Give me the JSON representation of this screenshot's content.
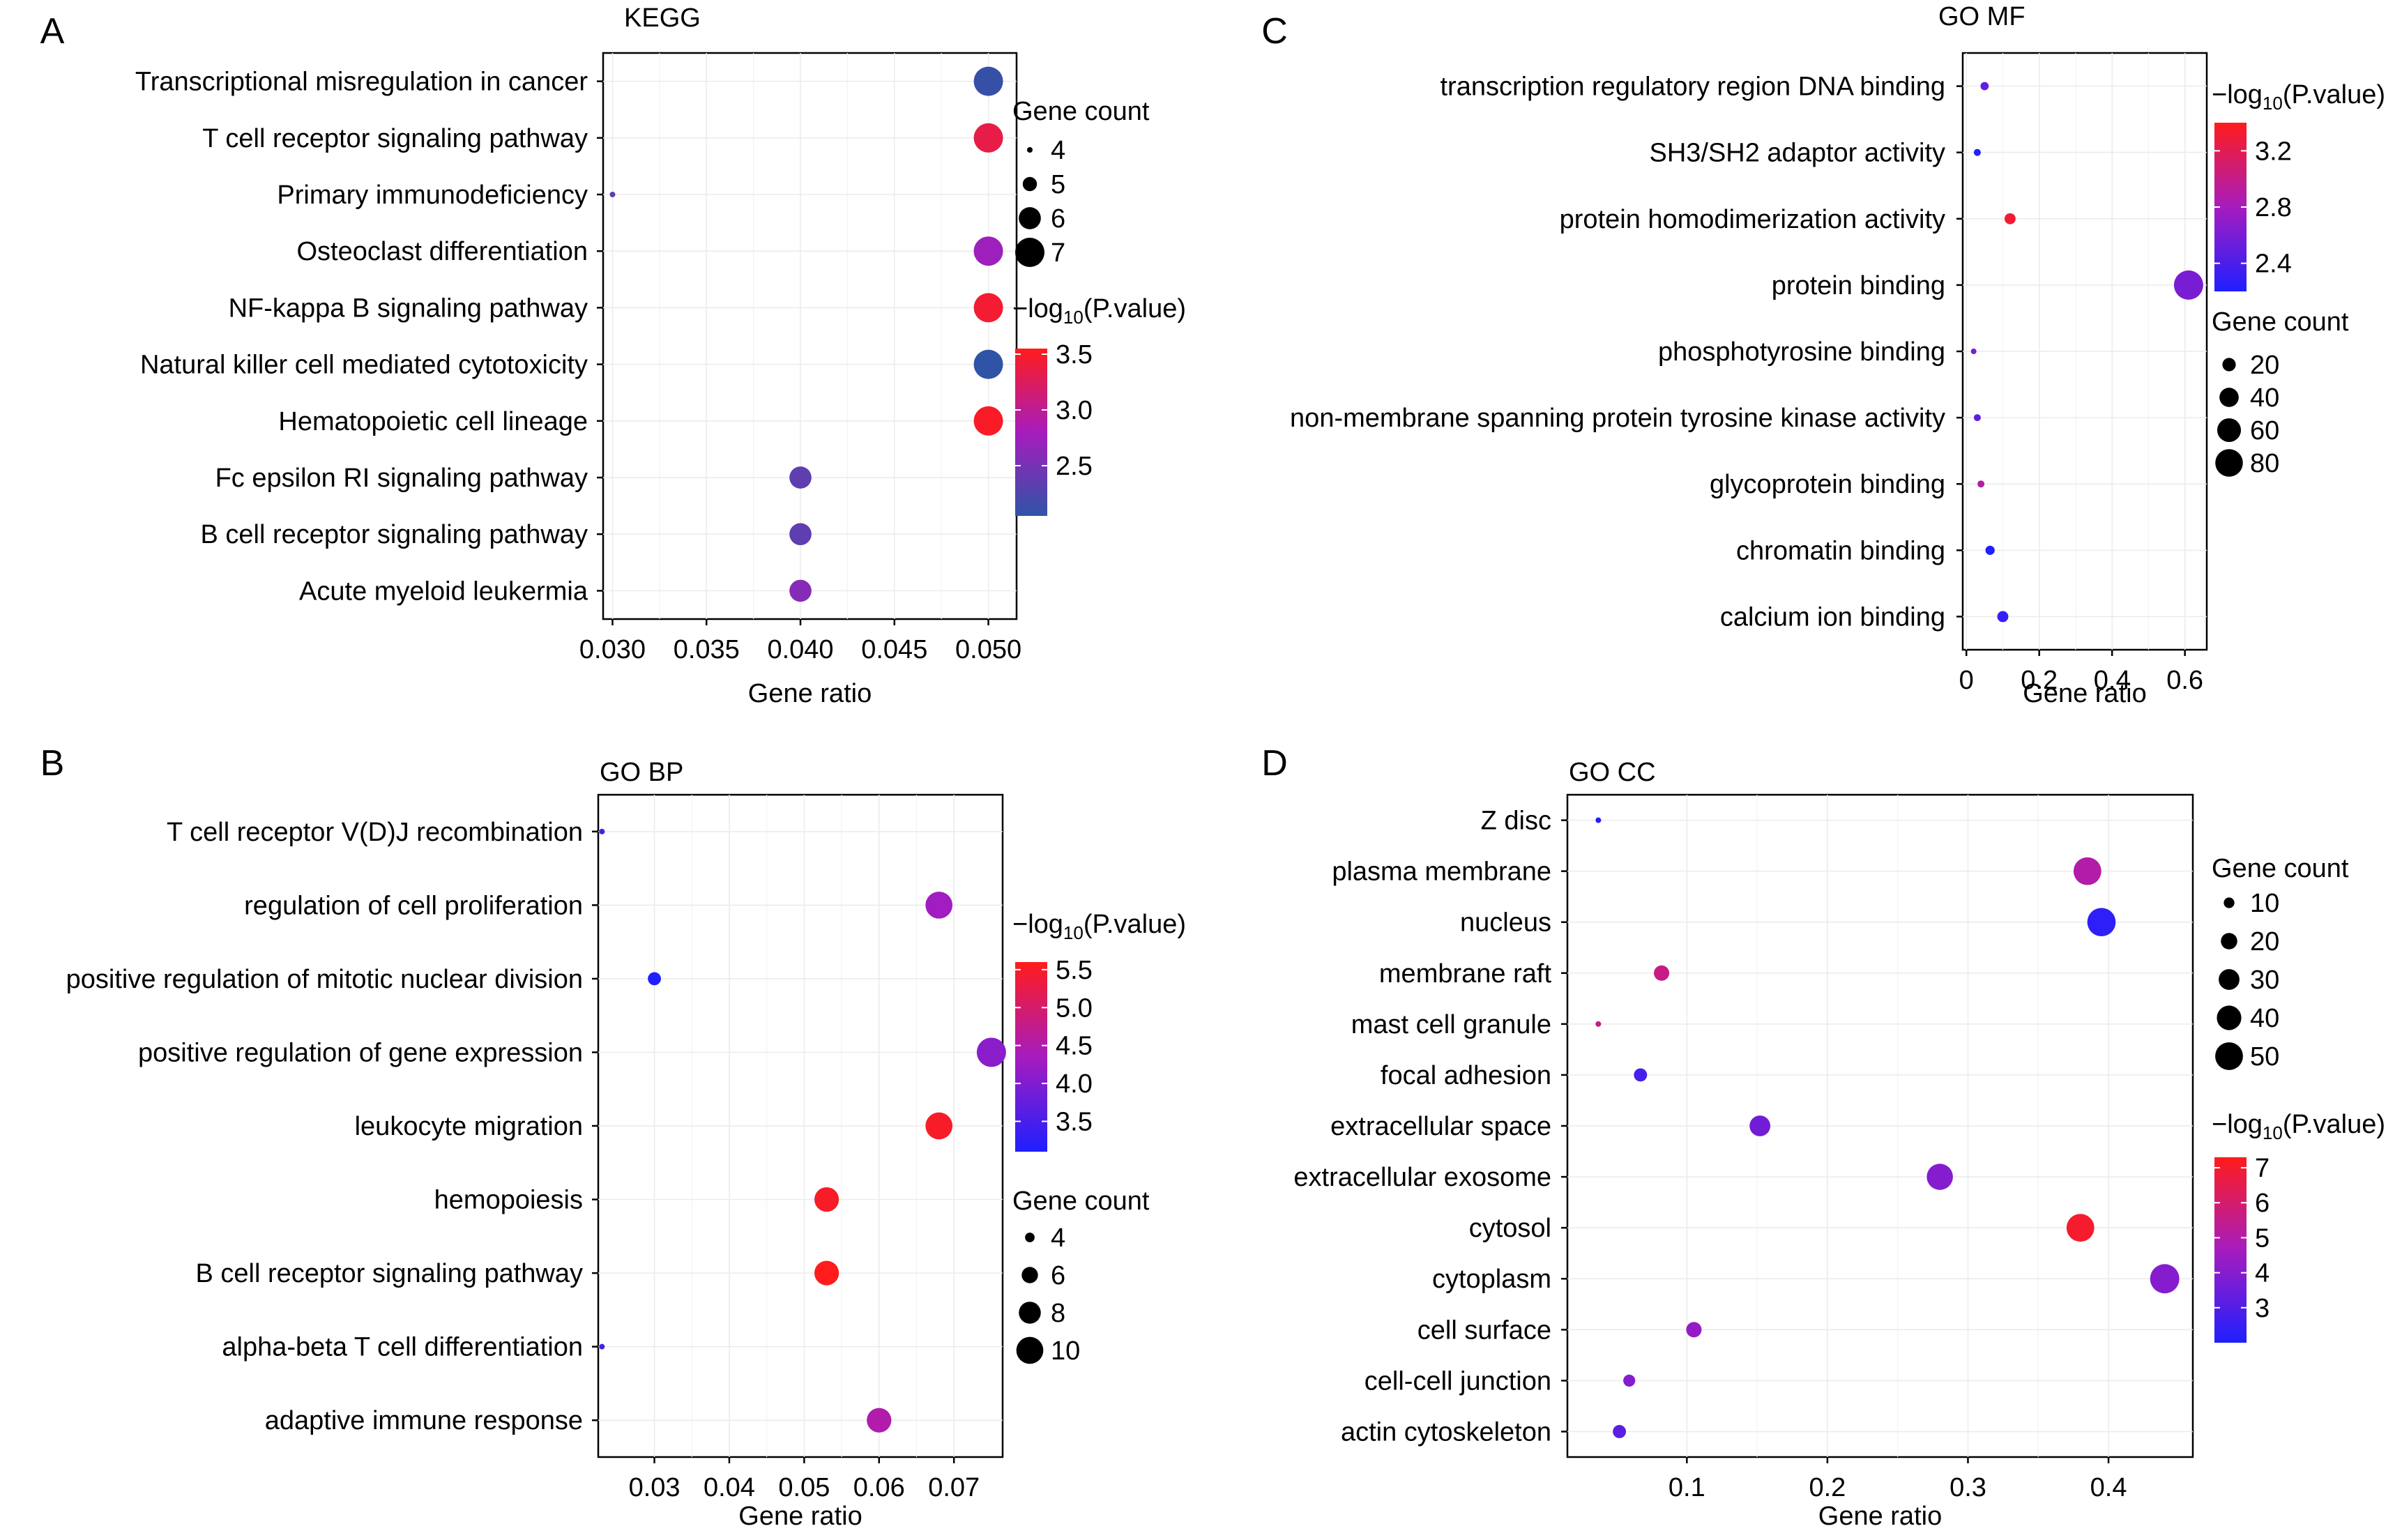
{
  "figure": {
    "colors": {
      "low": "#1f1fff",
      "mid": "#a61cbe",
      "high": "#ff1c1c"
    }
  },
  "chart_data": [
    {
      "panel": "A",
      "title": "KEGG",
      "type": "scatter",
      "xlabel": "Gene ratio",
      "xlim": [
        0.0295,
        0.0515
      ],
      "xticks": [
        "0.030",
        "0.035",
        "0.040",
        "0.045",
        "0.050"
      ],
      "xtick_values": [
        0.03,
        0.035,
        0.04,
        0.045,
        0.05
      ],
      "categories": [
        "Transcriptional misregulation in cancer",
        "T cell receptor signaling pathway",
        "Primary immunodeficiency",
        "Osteoclast differentiation",
        "NF-kappa B signaling pathway",
        "Natural killer cell mediated cytotoxicity",
        "Hematopoietic cell lineage",
        "Fc epsilon RI signaling pathway",
        "B cell receptor signaling pathway",
        "Acute myeloid leukermia"
      ],
      "gene_ratio": [
        0.05,
        0.05,
        0.03,
        0.05,
        0.05,
        0.05,
        0.05,
        0.04,
        0.04,
        0.04
      ],
      "gene_count": [
        7,
        7,
        4,
        7,
        7,
        7,
        7,
        6,
        6,
        6
      ],
      "neg_log10_p": [
        2.1,
        3.35,
        2.35,
        2.75,
        3.45,
        2.05,
        3.5,
        2.35,
        2.35,
        2.6
      ],
      "size_legend": {
        "title": "Gene count",
        "values": [
          "4",
          "5",
          "6",
          "7"
        ],
        "min": 4,
        "max": 7
      },
      "color_legend": {
        "title_prefix": "−log",
        "title_sub": "10",
        "title_suffix": "(P.value)",
        "ticks": [
          "3.5",
          "3.0",
          "2.5"
        ],
        "tick_values": [
          3.5,
          3.0,
          2.5
        ],
        "range": [
          2.05,
          3.55
        ],
        "low": "#2f54a5",
        "high": "#ff1c1c"
      },
      "legend_order": "size_first"
    },
    {
      "panel": "B",
      "title": "GO BP",
      "type": "scatter",
      "xlabel": "Gene ratio",
      "xlim": [
        0.0225,
        0.0765
      ],
      "xticks": [
        "0.03",
        "0.04",
        "0.05",
        "0.06",
        "0.07"
      ],
      "xtick_values": [
        0.03,
        0.04,
        0.05,
        0.06,
        0.07
      ],
      "categories": [
        "T cell receptor V(D)J recombination",
        "regulation of cell proliferation",
        "positive regulation of mitotic nuclear division",
        "positive regulation of gene expression",
        "leukocyte migration",
        "hemopoiesis",
        "B cell receptor signaling pathway",
        "alpha-beta T cell differentiation",
        "adaptive immune response"
      ],
      "gene_ratio": [
        0.023,
        0.068,
        0.03,
        0.075,
        0.068,
        0.053,
        0.053,
        0.023,
        0.06
      ],
      "gene_count": [
        3,
        10,
        5,
        11,
        10,
        9,
        9,
        3,
        9
      ],
      "neg_log10_p": [
        3.5,
        4.3,
        3.1,
        4.1,
        5.5,
        5.5,
        5.6,
        3.5,
        4.5
      ],
      "size_legend": {
        "title": "Gene count",
        "values": [
          "4",
          "6",
          "8",
          "10"
        ],
        "min": 3,
        "max": 11
      },
      "color_legend": {
        "title_prefix": "−log",
        "title_sub": "10",
        "title_suffix": "(P.value)",
        "ticks": [
          "5.5",
          "5.0",
          "4.5",
          "4.0",
          "3.5"
        ],
        "tick_values": [
          5.5,
          5.0,
          4.5,
          4.0,
          3.5
        ],
        "range": [
          3.1,
          5.6
        ],
        "low": "#1f1fff",
        "high": "#ff1c1c"
      },
      "legend_order": "color_first"
    },
    {
      "panel": "C",
      "title": "GO MF",
      "type": "scatter",
      "xlabel": "Gene ratio",
      "xlim": [
        -0.01,
        0.66
      ],
      "xticks": [
        "0",
        "0.2",
        "0.4",
        "0.6"
      ],
      "xtick_values": [
        0,
        0.2,
        0.4,
        0.6
      ],
      "categories": [
        "transcription regulatory region DNA binding",
        "SH3/SH2 adaptor activity",
        "protein homodimerization activity",
        "protein binding",
        "phosphotyrosine binding",
        "non-membrane spanning protein tyrosine kinase activity",
        "glycoprotein binding",
        "chromatin binding",
        "calcium ion binding"
      ],
      "gene_ratio": [
        0.05,
        0.03,
        0.12,
        0.61,
        0.02,
        0.03,
        0.04,
        0.065,
        0.1
      ],
      "gene_count": [
        8,
        6,
        14,
        90,
        4,
        6,
        6,
        10,
        14
      ],
      "neg_log10_p": [
        2.5,
        2.1,
        3.3,
        2.6,
        2.6,
        2.5,
        2.9,
        2.1,
        2.3
      ],
      "size_legend": {
        "title": "Gene count",
        "values": [
          "20",
          "40",
          "60",
          "80"
        ],
        "min": 4,
        "max": 90
      },
      "color_legend": {
        "title_prefix": "−log",
        "title_sub": "10",
        "title_suffix": "(P.value)",
        "ticks": [
          "3.2",
          "2.8",
          "2.4"
        ],
        "tick_values": [
          3.2,
          2.8,
          2.4
        ],
        "range": [
          2.2,
          3.4
        ],
        "low": "#1f1fff",
        "high": "#ff1c1c"
      },
      "legend_order": "color_first"
    },
    {
      "panel": "D",
      "title": "GO CC",
      "type": "scatter",
      "xlabel": "Gene ratio",
      "xlim": [
        0.015,
        0.46
      ],
      "xticks": [
        "0.1",
        "0.2",
        "0.3",
        "0.4"
      ],
      "xtick_values": [
        0.1,
        0.2,
        0.3,
        0.4
      ],
      "categories": [
        "Z disc",
        "plasma membrane",
        "nucleus",
        "membrane raft",
        "mast cell granule",
        "focal adhesion",
        "extracellular space",
        "extracellular exosome",
        "cytosol",
        "cytoplasm",
        "cell surface",
        "cell-cell junction",
        "actin cytoskeleton"
      ],
      "gene_ratio": [
        0.037,
        0.385,
        0.395,
        0.082,
        0.037,
        0.067,
        0.152,
        0.28,
        0.38,
        0.44,
        0.105,
        0.059,
        0.052
      ],
      "gene_count": [
        4,
        50,
        52,
        18,
        4,
        14,
        30,
        45,
        50,
        55,
        18,
        12,
        14
      ],
      "neg_log10_p": [
        2.0,
        5.0,
        2.3,
        5.6,
        5.5,
        2.8,
        3.6,
        4.0,
        7.0,
        4.0,
        4.3,
        4.0,
        3.2
      ],
      "size_legend": {
        "title": "Gene count",
        "values": [
          "10",
          "20",
          "30",
          "40",
          "50"
        ],
        "min": 4,
        "max": 55
      },
      "color_legend": {
        "title_prefix": "−log",
        "title_sub": "10",
        "title_suffix": "(P.value)",
        "ticks": [
          "7",
          "6",
          "5",
          "4",
          "3"
        ],
        "tick_values": [
          7,
          6,
          5,
          4,
          3
        ],
        "range": [
          2.0,
          7.3
        ],
        "low": "#1f1fff",
        "high": "#ff1c1c"
      },
      "legend_order": "size_first"
    }
  ]
}
